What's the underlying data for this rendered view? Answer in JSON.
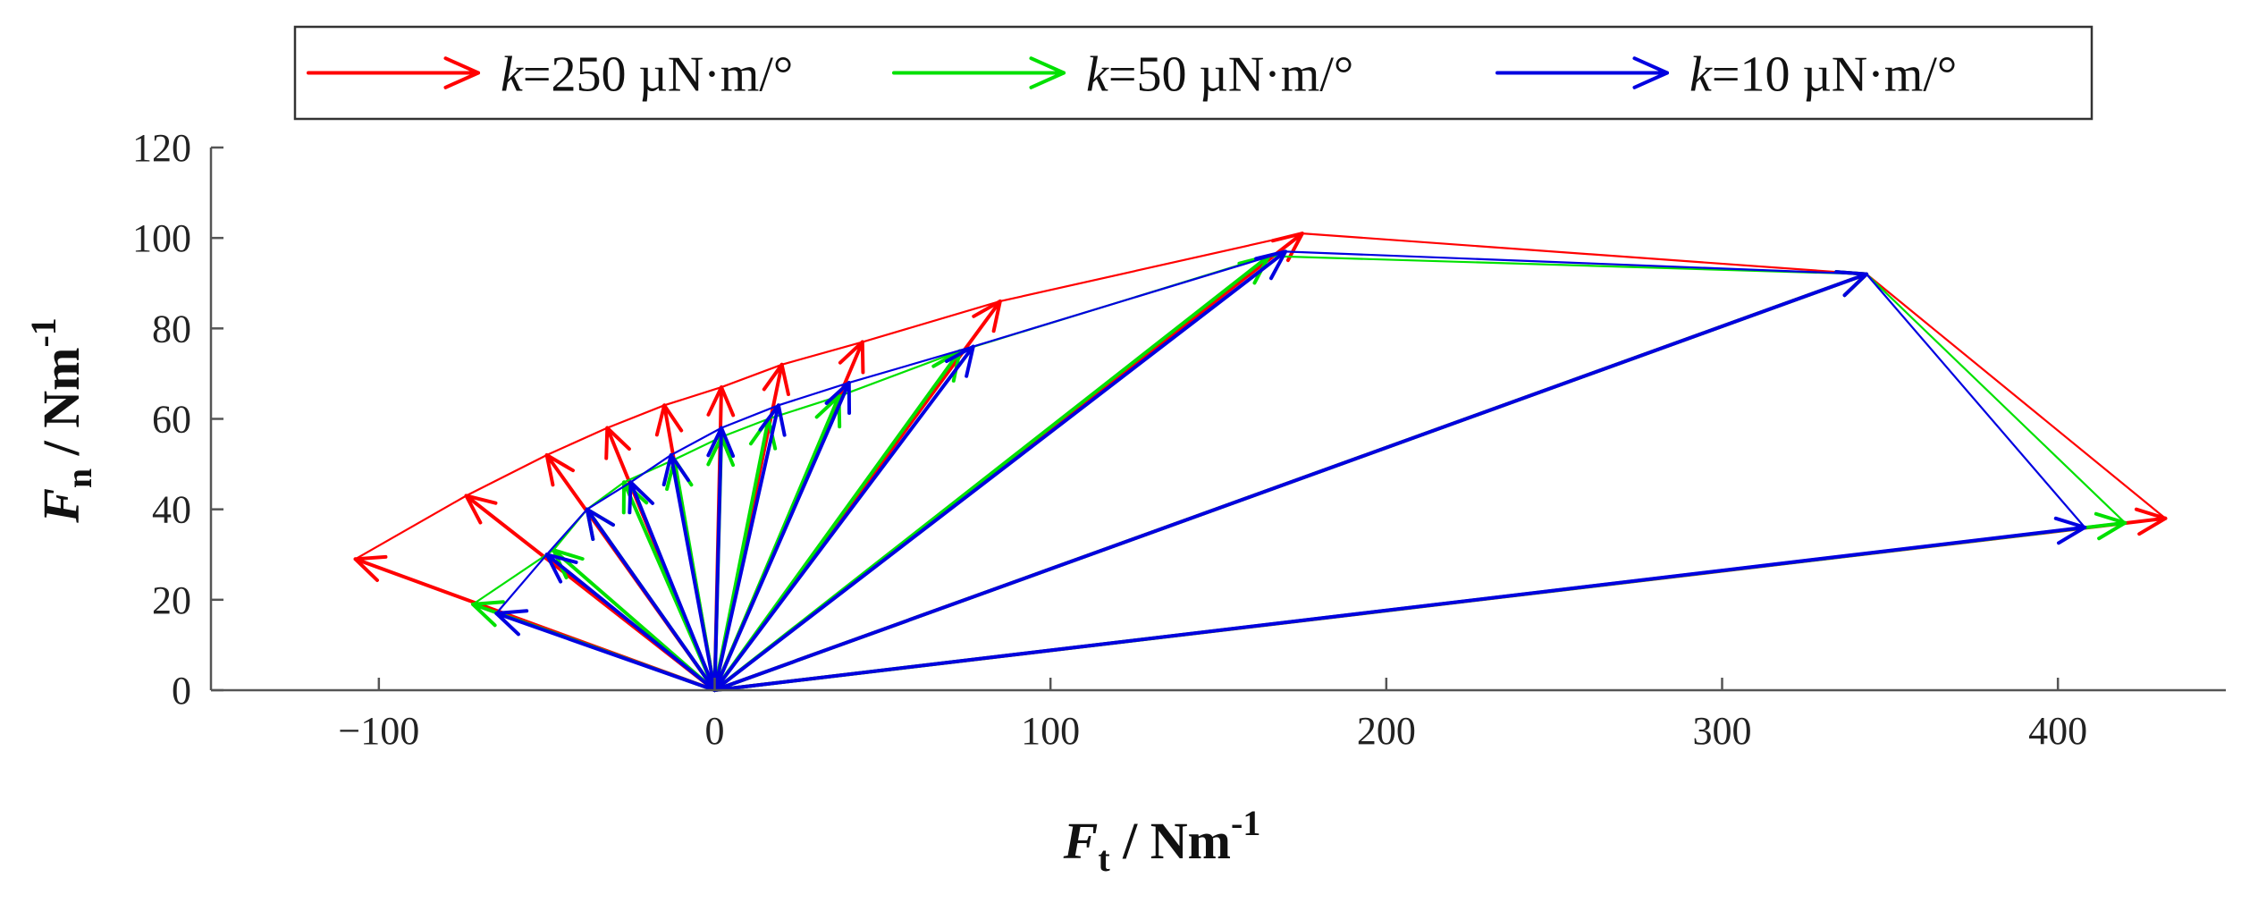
{
  "chart_data": {
    "type": "vector-field",
    "title": "",
    "xlabel": {
      "symbol": "F",
      "subscript": "t",
      "unit": " / Nm",
      "superscript": "-1"
    },
    "ylabel": {
      "symbol": "F",
      "subscript": "n",
      "unit": " / Nm",
      "superscript": "-1"
    },
    "xlim": [
      -150,
      450
    ],
    "ylim": [
      0,
      120
    ],
    "xticks": [
      -100,
      0,
      100,
      200,
      300,
      400
    ],
    "yticks": [
      0,
      20,
      40,
      60,
      80,
      100,
      120
    ],
    "xtick_labels": [
      "−100",
      "0",
      "100",
      "200",
      "300",
      "400"
    ],
    "ytick_labels": [
      "0",
      "20",
      "40",
      "60",
      "80",
      "100",
      "120"
    ],
    "grid": false,
    "legend_position": "top",
    "origin": [
      0,
      0
    ],
    "series": [
      {
        "name": "k=250 µN·m/°",
        "name_var": "k",
        "name_rest": "=250 µN·m/°",
        "color": "#ff0000",
        "tips": [
          [
            -107,
            29
          ],
          [
            -74,
            43
          ],
          [
            -50,
            52
          ],
          [
            -32,
            58
          ],
          [
            -15,
            63
          ],
          [
            2,
            67
          ],
          [
            20,
            72
          ],
          [
            44,
            77
          ],
          [
            85,
            86
          ],
          [
            175,
            101
          ],
          [
            343,
            92
          ],
          [
            432,
            38
          ]
        ]
      },
      {
        "name": "k=50 µN·m/°",
        "name_var": "k",
        "name_rest": "=50 µN·m/°",
        "color": "#00e000",
        "tips": [
          [
            -72,
            19
          ],
          [
            -48,
            31
          ],
          [
            -38,
            40
          ],
          [
            -27,
            46
          ],
          [
            -12,
            51
          ],
          [
            2,
            56
          ],
          [
            16,
            60
          ],
          [
            37,
            65
          ],
          [
            73,
            75
          ],
          [
            165,
            96
          ],
          [
            343,
            92
          ],
          [
            420,
            37
          ]
        ]
      },
      {
        "name": "k=10 µN·m/°",
        "name_var": "k",
        "name_rest": "=10 µN·m/°",
        "color": "#0000e0",
        "tips": [
          [
            -65,
            17
          ],
          [
            -50,
            30
          ],
          [
            -38,
            40
          ],
          [
            -25,
            46
          ],
          [
            -13,
            52
          ],
          [
            2,
            58
          ],
          [
            19,
            63
          ],
          [
            40,
            68
          ],
          [
            77,
            76
          ],
          [
            170,
            97
          ],
          [
            343,
            92
          ],
          [
            408,
            36
          ]
        ]
      }
    ]
  }
}
